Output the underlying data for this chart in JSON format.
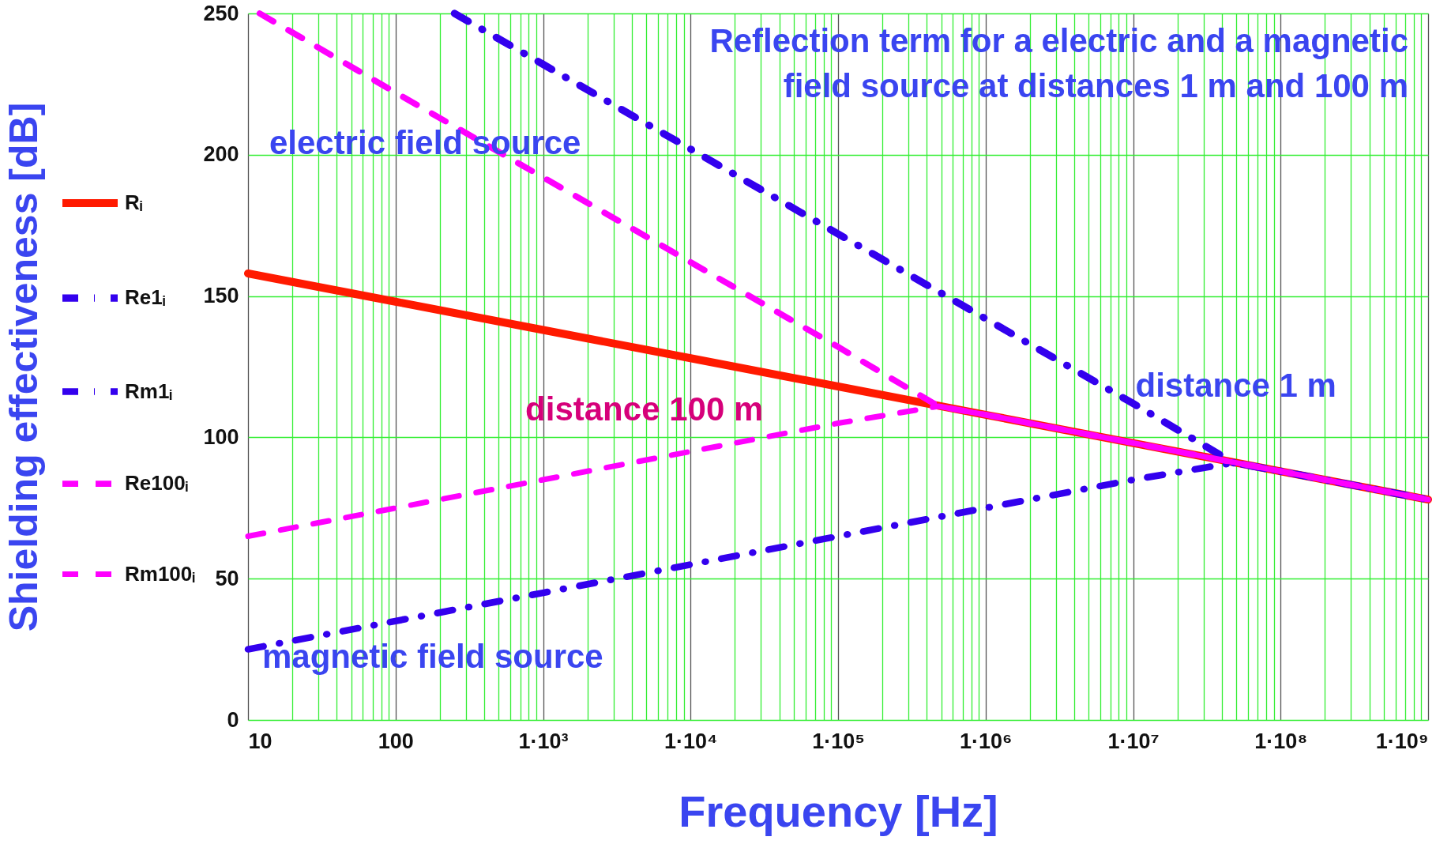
{
  "chart_data": {
    "type": "line",
    "title": "Reflection term for a electric and a magnetic field source at distances 1 m and 100 m",
    "xlabel": "Frequency [Hz]",
    "ylabel": "Shielding effectiveness  [dB]",
    "series": [
      {
        "name": "Rᵢ",
        "color": "#ff1a00",
        "line_style": "solid",
        "x": [
          10,
          100,
          1000,
          10000,
          100000,
          1000000,
          10000000,
          100000000,
          1000000000
        ],
        "values": [
          158,
          148,
          138,
          128,
          118,
          108,
          98,
          88,
          78
        ]
      },
      {
        "name": "Re1ᵢ",
        "color": "#3300ee",
        "line_style": "dashdot",
        "x": [
          251,
          1000,
          10000,
          100000,
          1000000,
          10000000,
          48000000,
          100000000,
          1000000000
        ],
        "values": [
          250,
          232,
          202,
          172,
          142,
          112,
          91,
          88,
          78
        ]
      },
      {
        "name": "Rm1ᵢ",
        "color": "#3300ee",
        "line_style": "dashdot",
        "x": [
          10,
          100,
          1000,
          10000,
          100000,
          1000000,
          10000000,
          48000000,
          100000000,
          1000000000
        ],
        "values": [
          25,
          35,
          45,
          55,
          65,
          75,
          85,
          91,
          88,
          78
        ]
      },
      {
        "name": "Re100ᵢ",
        "color": "#ff00ff",
        "line_style": "dashed",
        "x": [
          12,
          100,
          1000,
          10000,
          100000,
          480000,
          1000000,
          10000000,
          100000000,
          1000000000
        ],
        "values": [
          250,
          222,
          192,
          162,
          132,
          111,
          108,
          98,
          88,
          78
        ]
      },
      {
        "name": "Rm100ᵢ",
        "color": "#ff00ff",
        "line_style": "dashed",
        "x": [
          10,
          100,
          1000,
          10000,
          100000,
          480000,
          1000000,
          10000000,
          100000000,
          1000000000
        ],
        "values": [
          65,
          75,
          85,
          95,
          105,
          111,
          108,
          98,
          88,
          78
        ]
      }
    ],
    "annotations": [
      "electric  field source",
      "magnetic  field source",
      "distance 100 m",
      "distance 1 m"
    ],
    "log": "x",
    "xlim": [
      10,
      1000000000
    ],
    "ylim": [
      0,
      250
    ],
    "yticks": [
      0,
      50,
      100,
      150,
      200,
      250
    ],
    "xticks": [
      {
        "value": 10,
        "label": "10"
      },
      {
        "value": 20,
        "label": null
      },
      {
        "value": 30,
        "label": null
      },
      {
        "value": 40,
        "label": null
      },
      {
        "value": 50,
        "label": null
      },
      {
        "value": 60,
        "label": null
      },
      {
        "value": 70,
        "label": null
      },
      {
        "value": 80,
        "label": null
      },
      {
        "value": 90,
        "label": null
      },
      {
        "value": 100,
        "label": "100"
      },
      {
        "value": 200,
        "label": null
      },
      {
        "value": 300,
        "label": null
      },
      {
        "value": 400,
        "label": null
      },
      {
        "value": 500,
        "label": null
      },
      {
        "value": 600,
        "label": null
      },
      {
        "value": 700,
        "label": null
      },
      {
        "value": 800,
        "label": null
      },
      {
        "value": 900,
        "label": null
      },
      {
        "value": 1000,
        "label": "1·10³"
      },
      {
        "value": 2000,
        "label": null
      },
      {
        "value": 3000,
        "label": null
      },
      {
        "value": 4000,
        "label": null
      },
      {
        "value": 5000,
        "label": null
      },
      {
        "value": 6000,
        "label": null
      },
      {
        "value": 7000,
        "label": null
      },
      {
        "value": 8000,
        "label": null
      },
      {
        "value": 9000,
        "label": null
      },
      {
        "value": 10000,
        "label": "1·10⁴"
      },
      {
        "value": 20000,
        "label": null
      },
      {
        "value": 30000,
        "label": null
      },
      {
        "value": 40000,
        "label": null
      },
      {
        "value": 50000,
        "label": null
      },
      {
        "value": 60000,
        "label": null
      },
      {
        "value": 70000,
        "label": null
      },
      {
        "value": 80000,
        "label": null
      },
      {
        "value": 90000,
        "label": null
      },
      {
        "value": 100000,
        "label": "1·10⁵"
      },
      {
        "value": 200000,
        "label": null
      },
      {
        "value": 300000,
        "label": null
      },
      {
        "value": 400000,
        "label": null
      },
      {
        "value": 500000,
        "label": null
      },
      {
        "value": 600000,
        "label": null
      },
      {
        "value": 700000,
        "label": null
      },
      {
        "value": 800000,
        "label": null
      },
      {
        "value": 900000,
        "label": null
      },
      {
        "value": 1000000,
        "label": "1·10⁶"
      },
      {
        "value": 2000000,
        "label": null
      },
      {
        "value": 3000000,
        "label": null
      },
      {
        "value": 4000000,
        "label": null
      },
      {
        "value": 5000000,
        "label": null
      },
      {
        "value": 6000000,
        "label": null
      },
      {
        "value": 7000000,
        "label": null
      },
      {
        "value": 8000000,
        "label": null
      },
      {
        "value": 9000000,
        "label": null
      },
      {
        "value": 10000000,
        "label": "1·10⁷"
      },
      {
        "value": 20000000,
        "label": null
      },
      {
        "value": 30000000,
        "label": null
      },
      {
        "value": 40000000,
        "label": null
      },
      {
        "value": 50000000,
        "label": null
      },
      {
        "value": 60000000,
        "label": null
      },
      {
        "value": 70000000,
        "label": null
      },
      {
        "value": 80000000,
        "label": null
      },
      {
        "value": 90000000,
        "label": null
      },
      {
        "value": 100000000,
        "label": "1·10⁸"
      },
      {
        "value": 200000000,
        "label": null
      },
      {
        "value": 300000000,
        "label": null
      },
      {
        "value": 400000000,
        "label": null
      },
      {
        "value": 500000000,
        "label": null
      },
      {
        "value": 600000000,
        "label": null
      },
      {
        "value": 700000000,
        "label": null
      },
      {
        "value": 800000000,
        "label": null
      },
      {
        "value": 900000000,
        "label": null
      },
      {
        "value": 1000000000,
        "label": "1·10⁹"
      }
    ],
    "grid": true,
    "legend": "left",
    "marker": "none"
  }
}
